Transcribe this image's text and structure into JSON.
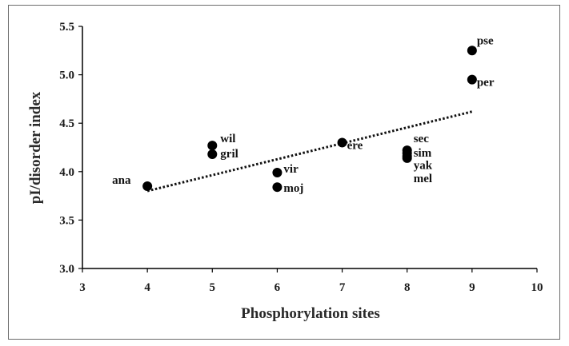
{
  "chart_data": {
    "type": "scatter",
    "title": "",
    "xlabel": "Phosphorylation sites",
    "ylabel": "pI/disorder index",
    "xlim": [
      3,
      10
    ],
    "ylim": [
      3.0,
      5.5
    ],
    "x_ticks": [
      "3",
      "4",
      "5",
      "6",
      "7",
      "8",
      "9",
      "10"
    ],
    "y_ticks": [
      "3.0",
      "3.5",
      "4.0",
      "4.5",
      "5.0",
      "5.5"
    ],
    "points": [
      {
        "label": "ana",
        "x": 4,
        "y": 3.85
      },
      {
        "label": "wil",
        "x": 5,
        "y": 4.27
      },
      {
        "label": "gril",
        "x": 5,
        "y": 4.18
      },
      {
        "label": "vir",
        "x": 6,
        "y": 3.99
      },
      {
        "label": "moj",
        "x": 6,
        "y": 3.84
      },
      {
        "label": "ere",
        "x": 7,
        "y": 4.3
      },
      {
        "label": "sec",
        "x": 8,
        "y": 4.22
      },
      {
        "label": "sim",
        "x": 8,
        "y": 4.19
      },
      {
        "label": "yak",
        "x": 8,
        "y": 4.16
      },
      {
        "label": "mel",
        "x": 8,
        "y": 4.14
      },
      {
        "label": "pse",
        "x": 9,
        "y": 5.25
      },
      {
        "label": "per",
        "x": 9,
        "y": 4.95
      }
    ],
    "trendline": {
      "style": "dotted",
      "x": [
        4,
        9
      ],
      "y": [
        3.8,
        4.62
      ]
    },
    "grid": false,
    "legend": "none",
    "marker_color": "#000000"
  }
}
